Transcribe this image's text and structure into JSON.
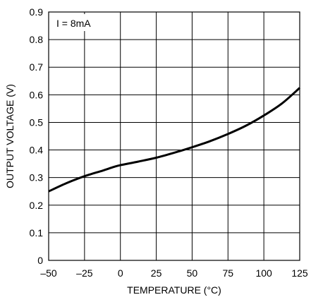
{
  "chart_data": {
    "type": "line",
    "title": "",
    "xlabel": "TEMPERATURE (°C)",
    "ylabel": "OUTPUT VOLTAGE (V)",
    "xlim": [
      -50,
      125
    ],
    "ylim": [
      0,
      0.9
    ],
    "xticks": [
      -50,
      -25,
      0,
      25,
      50,
      75,
      100,
      125
    ],
    "xtick_labels": [
      "–50",
      "–25",
      "0",
      "25",
      "50",
      "75",
      "100",
      "125"
    ],
    "yticks": [
      0,
      0.1,
      0.2,
      0.3,
      0.4,
      0.5,
      0.6,
      0.7,
      0.8,
      0.9
    ],
    "ytick_labels": [
      "0",
      "0.1",
      "0.2",
      "0.3",
      "0.4",
      "0.5",
      "0.6",
      "0.7",
      "0.8",
      "0.9"
    ],
    "grid": true,
    "annotation": "I = 8mA",
    "series": [
      {
        "x": [
          -50,
          -37.5,
          -25,
          -12.5,
          -5,
          0,
          12.5,
          25,
          37.5,
          50,
          62.5,
          75,
          87.5,
          100,
          112.5,
          125
        ],
        "y": [
          0.25,
          0.28,
          0.305,
          0.325,
          0.338,
          0.345,
          0.358,
          0.372,
          0.39,
          0.41,
          0.432,
          0.458,
          0.488,
          0.525,
          0.568,
          0.625
        ]
      }
    ],
    "line_color": "#000000"
  }
}
